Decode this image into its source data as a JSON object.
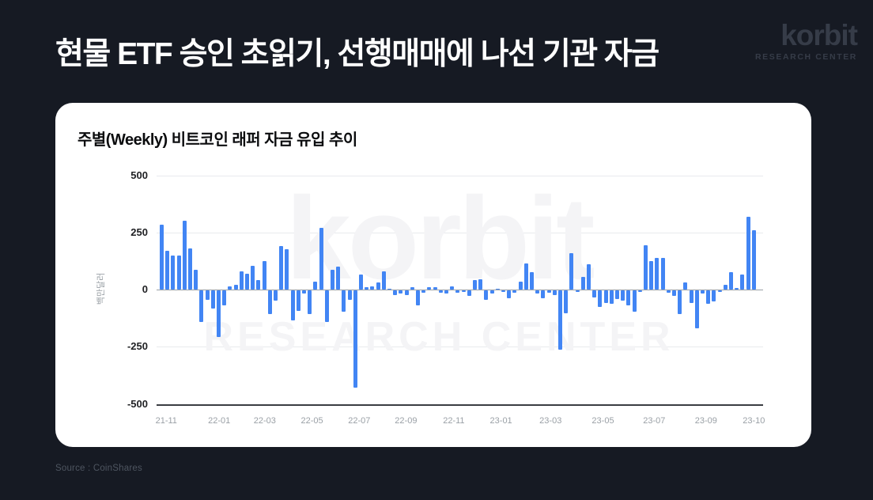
{
  "header": {
    "title": "현물 ETF 승인 초읽기, 선행매매에 나선 기관 자금"
  },
  "logo": {
    "name": "korbit",
    "subtitle": "RESEARCH CENTER"
  },
  "watermark": {
    "line1": "korbit",
    "line2": "RESEARCH CENTER"
  },
  "source": "Source : CoinShares",
  "colors": {
    "background": "#161a23",
    "card": "#ffffff",
    "bar": "#4285f4",
    "gridline": "#e8eaed",
    "zero_line": "#9aa0a6",
    "axis_line": "#3a3d42",
    "muted_text": "#9aa0a6",
    "watermark": "#f4f4f6"
  },
  "chart_data": {
    "type": "bar",
    "title": "주별(Weekly) 비트코인 래퍼 자금 유입 추이",
    "xlabel": "",
    "ylabel": "백만달러",
    "ylim": [
      -500,
      500
    ],
    "yticks": [
      500,
      250,
      0,
      -250,
      -500
    ],
    "grid": true,
    "legend": false,
    "series_name": "주별 비트코인 래퍼 자금 유입 (백만달러)",
    "x_ticks": [
      {
        "label": "21-11",
        "pos": 0.8
      },
      {
        "label": "22-01",
        "pos": 10.1
      },
      {
        "label": "22-03",
        "pos": 18.1
      },
      {
        "label": "22-05",
        "pos": 26.4
      },
      {
        "label": "22-07",
        "pos": 34.7
      },
      {
        "label": "22-09",
        "pos": 42.9
      },
      {
        "label": "22-11",
        "pos": 51.3
      },
      {
        "label": "23-01",
        "pos": 59.6
      },
      {
        "label": "23-03",
        "pos": 68.3
      },
      {
        "label": "23-05",
        "pos": 77.5
      },
      {
        "label": "23-07",
        "pos": 86.5
      },
      {
        "label": "23-09",
        "pos": 95.6
      },
      {
        "label": "23-10",
        "pos": 104
      }
    ],
    "values": [
      285,
      170,
      150,
      150,
      300,
      180,
      85,
      -140,
      -40,
      -80,
      -205,
      -65,
      15,
      20,
      80,
      70,
      105,
      40,
      125,
      -105,
      -45,
      190,
      175,
      -130,
      -90,
      -15,
      -105,
      35,
      270,
      -140,
      85,
      100,
      -95,
      -40,
      -425,
      65,
      10,
      15,
      30,
      80,
      5,
      -20,
      -15,
      -20,
      12,
      -65,
      -10,
      10,
      12,
      -10,
      -15,
      15,
      -10,
      -8,
      -25,
      40,
      45,
      -40,
      -15,
      5,
      -8,
      -35,
      -12,
      35,
      115,
      75,
      -15,
      -35,
      -10,
      -20,
      -258,
      -100,
      158,
      -8,
      55,
      110,
      -30,
      -72,
      -55,
      -58,
      -38,
      -45,
      -65,
      -92,
      -8,
      195,
      125,
      140,
      140,
      -10,
      -25,
      -105,
      30,
      -55,
      -165,
      -15,
      -60,
      -50,
      -8,
      22,
      75,
      8,
      65,
      320,
      258
    ]
  }
}
